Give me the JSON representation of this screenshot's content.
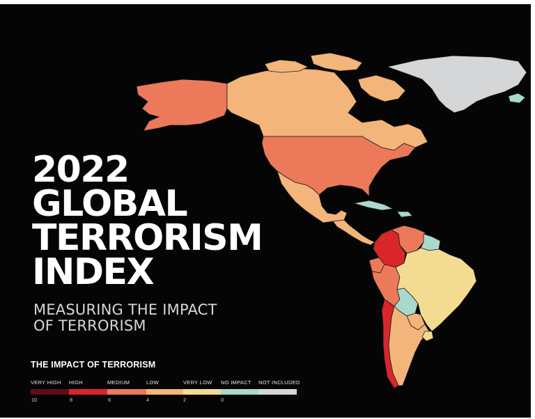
{
  "title_lines": [
    "2022",
    "GLOBAL",
    "TERRORISM",
    "INDEX"
  ],
  "subtitle_lines": [
    "MEASURING THE IMPACT",
    "OF TERRORISM"
  ],
  "legend": {
    "title": "THE IMPACT OF TERRORISM",
    "categories": [
      {
        "label": "VERY HIGH",
        "color": "#5c0f18"
      },
      {
        "label": "HIGH",
        "color": "#d8262a"
      },
      {
        "label": "MEDIUM",
        "color": "#ec7a5a"
      },
      {
        "label": "LOW",
        "color": "#f4b57a"
      },
      {
        "label": "VERY LOW",
        "color": "#f3dc92"
      },
      {
        "label": "NO IMPACT",
        "color": "#a9d9cc"
      },
      {
        "label": "NOT INCLUDED",
        "color": "#d4d6d8"
      }
    ],
    "ticks": [
      "10",
      "8",
      "6",
      "4",
      "2",
      "0"
    ]
  },
  "regions": [
    {
      "name": "Alaska",
      "level": "MEDIUM"
    },
    {
      "name": "Canada",
      "level": "LOW"
    },
    {
      "name": "Greenland",
      "level": "NOT INCLUDED"
    },
    {
      "name": "Iceland",
      "level": "NO IMPACT"
    },
    {
      "name": "United States",
      "level": "MEDIUM"
    },
    {
      "name": "Mexico",
      "level": "LOW"
    },
    {
      "name": "Cuba",
      "level": "NO IMPACT"
    },
    {
      "name": "Central America",
      "level": "LOW"
    },
    {
      "name": "Colombia",
      "level": "HIGH"
    },
    {
      "name": "Venezuela",
      "level": "MEDIUM"
    },
    {
      "name": "Guyana",
      "level": "NO IMPACT"
    },
    {
      "name": "Ecuador",
      "level": "MEDIUM"
    },
    {
      "name": "Peru",
      "level": "MEDIUM"
    },
    {
      "name": "Brazil",
      "level": "VERY LOW"
    },
    {
      "name": "Bolivia",
      "level": "NO IMPACT"
    },
    {
      "name": "Paraguay",
      "level": "LOW"
    },
    {
      "name": "Chile",
      "level": "HIGH"
    },
    {
      "name": "Argentina",
      "level": "LOW"
    },
    {
      "name": "Uruguay",
      "level": "VERY LOW"
    }
  ]
}
